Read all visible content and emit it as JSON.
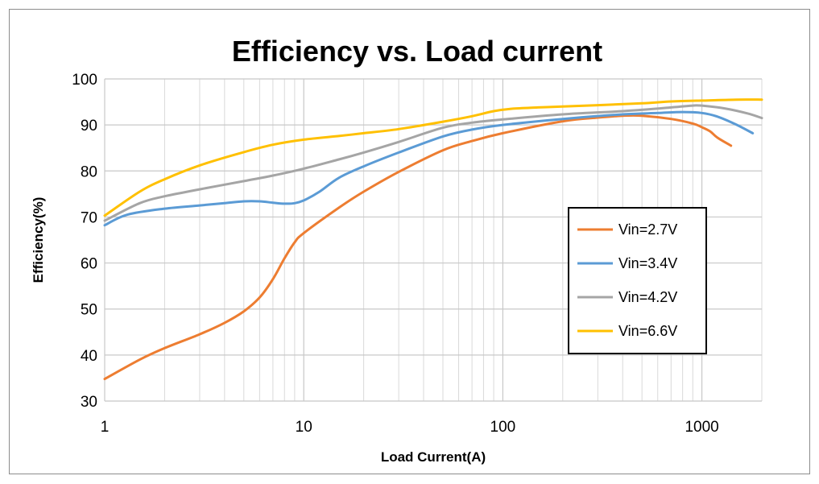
{
  "chart_data": {
    "type": "line",
    "title": "Efficiency vs. Load current",
    "xlabel": "Load Current(A)",
    "ylabel": "Efficiency(%)",
    "x_scale": "log",
    "xlim": [
      1,
      2000
    ],
    "ylim": [
      30,
      100
    ],
    "x_ticks": [
      1,
      10,
      100,
      1000
    ],
    "x_tick_labels": [
      "1",
      "10",
      "100",
      "1000"
    ],
    "y_ticks": [
      30,
      40,
      50,
      60,
      70,
      80,
      90,
      100
    ],
    "y_tick_labels": [
      "30",
      "40",
      "50",
      "60",
      "70",
      "80",
      "90",
      "100"
    ],
    "grid": true,
    "legend_position": "right",
    "series": [
      {
        "name": "Vin=2.7V",
        "color": "#ed7d31",
        "points": [
          [
            1,
            34.8
          ],
          [
            1.5,
            39
          ],
          [
            2,
            41.5
          ],
          [
            3,
            44.5
          ],
          [
            4,
            47
          ],
          [
            5,
            49.5
          ],
          [
            6,
            52.5
          ],
          [
            7,
            56.5
          ],
          [
            8,
            61
          ],
          [
            9,
            64.5
          ],
          [
            10,
            66.5
          ],
          [
            15,
            72
          ],
          [
            20,
            75.5
          ],
          [
            30,
            79.8
          ],
          [
            50,
            84.5
          ],
          [
            70,
            86.5
          ],
          [
            100,
            88.2
          ],
          [
            200,
            90.8
          ],
          [
            300,
            91.6
          ],
          [
            400,
            92
          ],
          [
            500,
            92
          ],
          [
            700,
            91.3
          ],
          [
            900,
            90.3
          ],
          [
            1000,
            89.5
          ],
          [
            1100,
            88.6
          ],
          [
            1200,
            87.2
          ],
          [
            1400,
            85.5
          ]
        ]
      },
      {
        "name": "Vin=3.4V",
        "color": "#5b9bd5",
        "points": [
          [
            1,
            68.2
          ],
          [
            1.3,
            70.5
          ],
          [
            2,
            71.8
          ],
          [
            3,
            72.5
          ],
          [
            4,
            73
          ],
          [
            5,
            73.4
          ],
          [
            6,
            73.4
          ],
          [
            7,
            73.1
          ],
          [
            8,
            72.9
          ],
          [
            9,
            73
          ],
          [
            10,
            73.6
          ],
          [
            12,
            75.5
          ],
          [
            15,
            78.5
          ],
          [
            20,
            81
          ],
          [
            30,
            84
          ],
          [
            50,
            87.5
          ],
          [
            70,
            89
          ],
          [
            100,
            90
          ],
          [
            200,
            91.3
          ],
          [
            400,
            92.3
          ],
          [
            600,
            92.6
          ],
          [
            800,
            92.8
          ],
          [
            1000,
            92.6
          ],
          [
            1200,
            91.8
          ],
          [
            1500,
            90
          ],
          [
            1800,
            88.2
          ]
        ]
      },
      {
        "name": "Vin=4.2V",
        "color": "#a5a5a5",
        "points": [
          [
            1,
            69.2
          ],
          [
            1.5,
            73
          ],
          [
            2,
            74.5
          ],
          [
            3,
            76
          ],
          [
            5,
            77.8
          ],
          [
            7,
            79
          ],
          [
            10,
            80.5
          ],
          [
            15,
            82.5
          ],
          [
            20,
            84
          ],
          [
            30,
            86.3
          ],
          [
            50,
            89.4
          ],
          [
            70,
            90.5
          ],
          [
            100,
            91.2
          ],
          [
            200,
            92.3
          ],
          [
            400,
            93
          ],
          [
            700,
            93.8
          ],
          [
            900,
            94.2
          ],
          [
            1000,
            94.2
          ],
          [
            1300,
            93.6
          ],
          [
            1700,
            92.5
          ],
          [
            2000,
            91.5
          ]
        ]
      },
      {
        "name": "Vin=6.6V",
        "color": "#ffc000",
        "points": [
          [
            1,
            70.3
          ],
          [
            1.5,
            75.5
          ],
          [
            2,
            78.2
          ],
          [
            3,
            81.2
          ],
          [
            5,
            84.1
          ],
          [
            7,
            85.7
          ],
          [
            10,
            86.8
          ],
          [
            15,
            87.6
          ],
          [
            20,
            88.2
          ],
          [
            30,
            89.1
          ],
          [
            50,
            90.7
          ],
          [
            70,
            91.9
          ],
          [
            90,
            93
          ],
          [
            110,
            93.5
          ],
          [
            150,
            93.8
          ],
          [
            200,
            94
          ],
          [
            300,
            94.3
          ],
          [
            500,
            94.7
          ],
          [
            700,
            95.1
          ],
          [
            1000,
            95.3
          ],
          [
            1500,
            95.5
          ],
          [
            2000,
            95.5
          ]
        ]
      }
    ]
  }
}
